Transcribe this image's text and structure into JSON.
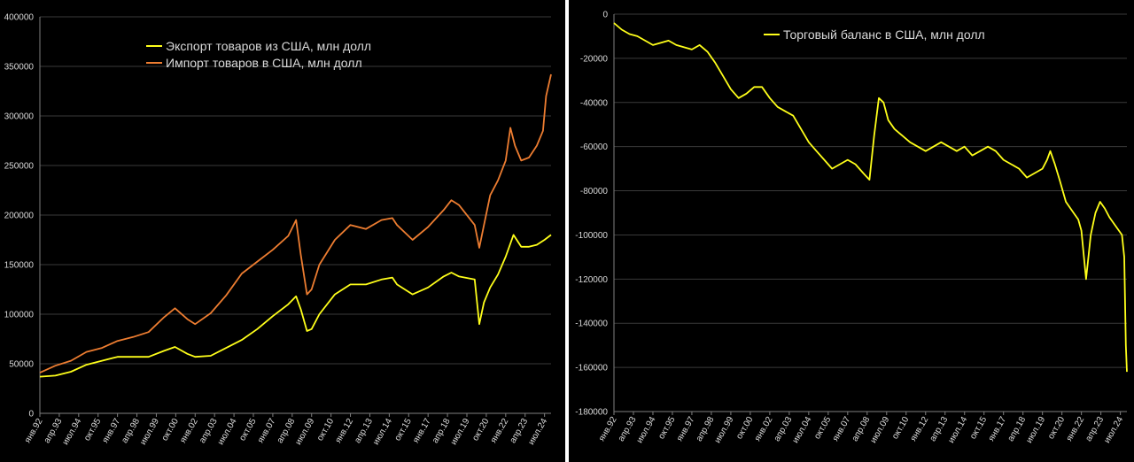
{
  "chart_data": [
    {
      "type": "line",
      "x_tick_labels": [
        "янв.92",
        "апр.93",
        "июл.94",
        "окт.95",
        "янв.97",
        "апр.98",
        "июл.99",
        "окт.00",
        "янв.02",
        "апр.03",
        "июл.04",
        "окт.05",
        "янв.07",
        "апр.08",
        "июл.09",
        "окт.10",
        "янв.12",
        "апр.13",
        "июл.14",
        "окт.15",
        "янв.17",
        "апр.18",
        "июл.19",
        "окт.20",
        "янв.22",
        "апр.23",
        "июл.24"
      ],
      "x_range": [
        "янв.92",
        "дек.24"
      ],
      "ylim": [
        0,
        400000
      ],
      "y_ticks": [
        0,
        50000,
        100000,
        150000,
        200000,
        250000,
        300000,
        350000,
        400000
      ],
      "grid": "horizontal",
      "legend_position": "top-left",
      "series": [
        {
          "name": "Экспорт товаров из США, млн долл",
          "color": "#ffff1a",
          "x": [
            1992.0,
            1993.0,
            1994.0,
            1995.0,
            1996.0,
            1997.0,
            1998.0,
            1999.0,
            2000.0,
            2000.7,
            2001.5,
            2002.0,
            2003.0,
            2004.0,
            2005.0,
            2006.0,
            2007.0,
            2008.0,
            2008.5,
            2008.8,
            2009.2,
            2009.5,
            2010.0,
            2011.0,
            2012.0,
            2013.0,
            2014.0,
            2014.7,
            2015.0,
            2016.0,
            2017.0,
            2018.0,
            2018.5,
            2019.0,
            2020.0,
            2020.3,
            2020.6,
            2021.0,
            2021.5,
            2022.0,
            2022.5,
            2023.0,
            2023.5,
            2024.0,
            2024.5,
            2024.92
          ],
          "y": [
            37000,
            38000,
            42000,
            49000,
            53000,
            57000,
            57000,
            57000,
            63000,
            67000,
            60000,
            57000,
            58000,
            66000,
            74000,
            85000,
            98000,
            110000,
            118000,
            105000,
            83000,
            85000,
            100000,
            120000,
            130000,
            130000,
            135000,
            137000,
            130000,
            120000,
            127000,
            138000,
            142000,
            138000,
            135000,
            90000,
            112000,
            127000,
            140000,
            158000,
            180000,
            168000,
            168000,
            170000,
            175000,
            180000
          ]
        },
        {
          "name": "Импорт товаров в США, млн долл",
          "color": "#ed7d31",
          "x": [
            1992.0,
            1993.0,
            1994.0,
            1995.0,
            1996.0,
            1997.0,
            1998.0,
            1999.0,
            2000.0,
            2000.7,
            2001.5,
            2002.0,
            2003.0,
            2004.0,
            2005.0,
            2006.0,
            2007.0,
            2008.0,
            2008.5,
            2008.8,
            2009.2,
            2009.5,
            2010.0,
            2011.0,
            2012.0,
            2013.0,
            2014.0,
            2014.7,
            2015.0,
            2016.0,
            2017.0,
            2018.0,
            2018.5,
            2019.0,
            2020.0,
            2020.3,
            2020.6,
            2021.0,
            2021.5,
            2022.0,
            2022.3,
            2022.6,
            2023.0,
            2023.5,
            2024.0,
            2024.4,
            2024.6,
            2024.92
          ],
          "y": [
            41000,
            48000,
            53000,
            62000,
            66000,
            73000,
            77000,
            82000,
            97000,
            106000,
            95000,
            90000,
            101000,
            119000,
            141000,
            153000,
            165000,
            179000,
            195000,
            160000,
            120000,
            125000,
            150000,
            175000,
            190000,
            186000,
            195000,
            197000,
            190000,
            175000,
            188000,
            205000,
            215000,
            210000,
            190000,
            167000,
            190000,
            220000,
            235000,
            255000,
            288000,
            270000,
            255000,
            258000,
            270000,
            285000,
            320000,
            342000
          ]
        }
      ]
    },
    {
      "type": "line",
      "x_tick_labels": [
        "янв.92",
        "апр.93",
        "июл.94",
        "окт.95",
        "янв.97",
        "апр.98",
        "июл.99",
        "окт.00",
        "янв.02",
        "апр.03",
        "июл.04",
        "окт.05",
        "янв.07",
        "апр.08",
        "июл.09",
        "окт.10",
        "янв.12",
        "апр.13",
        "июл.14",
        "окт.15",
        "янв.17",
        "апр.18",
        "июл.19",
        "окт.20",
        "янв.22",
        "апр.23",
        "июл.24"
      ],
      "x_range": [
        "янв.92",
        "дек.24"
      ],
      "ylim": [
        -180000,
        0
      ],
      "y_ticks": [
        0,
        -20000,
        -40000,
        -60000,
        -80000,
        -100000,
        -120000,
        -140000,
        -160000,
        -180000
      ],
      "grid": "horizontal",
      "legend_position": "top-center",
      "series": [
        {
          "name": "Торговый баланс в США, млн долл",
          "color": "#ffff1a",
          "x": [
            1992.0,
            1992.5,
            1993.0,
            1993.5,
            1994.0,
            1994.5,
            1995.0,
            1995.5,
            1996.0,
            1997.0,
            1997.5,
            1998.0,
            1998.5,
            1999.0,
            1999.5,
            2000.0,
            2000.5,
            2001.0,
            2001.5,
            2002.0,
            2002.5,
            2003.0,
            2003.5,
            2004.0,
            2004.5,
            2005.0,
            2005.5,
            2006.0,
            2006.5,
            2007.0,
            2007.5,
            2008.0,
            2008.4,
            2008.7,
            2009.0,
            2009.3,
            2009.6,
            2010.0,
            2010.5,
            2011.0,
            2011.5,
            2012.0,
            2012.5,
            2013.0,
            2013.5,
            2014.0,
            2014.5,
            2015.0,
            2015.5,
            2016.0,
            2016.5,
            2017.0,
            2017.5,
            2018.0,
            2018.5,
            2019.0,
            2019.5,
            2019.8,
            2020.0,
            2020.3,
            2020.6,
            2021.0,
            2021.5,
            2021.8,
            2022.0,
            2022.3,
            2022.6,
            2022.9,
            2023.2,
            2023.5,
            2023.8,
            2024.1,
            2024.4,
            2024.6,
            2024.75,
            2024.85,
            2024.92
          ],
          "y": [
            -4000,
            -7000,
            -9000,
            -10000,
            -12000,
            -14000,
            -13000,
            -12000,
            -14000,
            -16000,
            -14000,
            -17000,
            -22000,
            -28000,
            -34000,
            -38000,
            -36000,
            -33000,
            -33000,
            -38000,
            -42000,
            -44000,
            -46000,
            -52000,
            -58000,
            -62000,
            -66000,
            -70000,
            -68000,
            -66000,
            -68000,
            -72000,
            -75000,
            -55000,
            -38000,
            -40000,
            -48000,
            -52000,
            -55000,
            -58000,
            -60000,
            -62000,
            -60000,
            -58000,
            -60000,
            -62000,
            -60000,
            -64000,
            -62000,
            -60000,
            -62000,
            -66000,
            -68000,
            -70000,
            -74000,
            -72000,
            -70000,
            -66000,
            -62000,
            -68000,
            -75000,
            -85000,
            -90000,
            -93000,
            -98000,
            -120000,
            -100000,
            -90000,
            -85000,
            -88000,
            -92000,
            -95000,
            -98000,
            -100000,
            -110000,
            -150000,
            -162000
          ]
        }
      ]
    }
  ]
}
